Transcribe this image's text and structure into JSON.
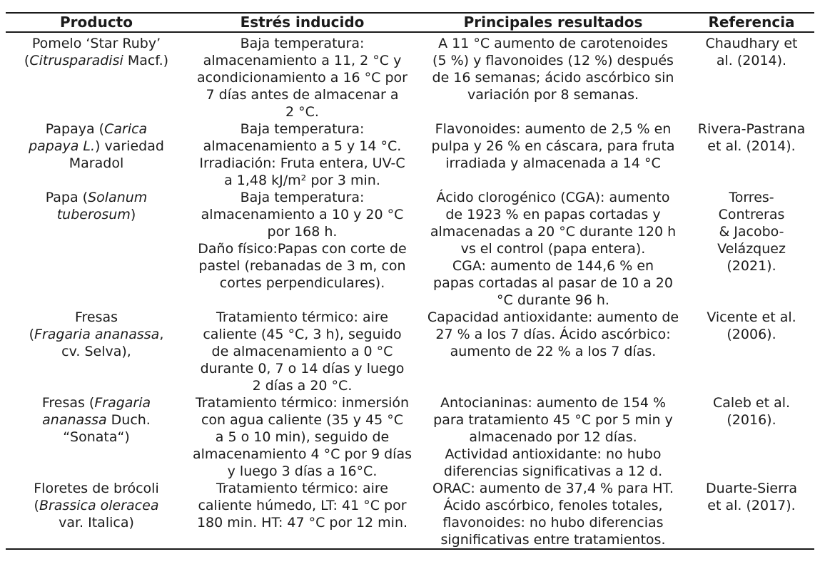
{
  "table": {
    "headers": [
      "Producto",
      "Estrés inducido",
      "Principales resultados",
      "Referencia"
    ],
    "column_keys": [
      "producto",
      "estres",
      "resultados",
      "referencia"
    ],
    "text_color": "#1b1b1b",
    "rule_color": "#1b1b1b",
    "rows": [
      {
        "producto": {
          "lines": [
            [
              {
                "t": "Pomelo ‘Star Ruby’"
              }
            ],
            [
              {
                "t": "("
              },
              {
                "t": "Citrusparadisi",
                "i": 1
              },
              {
                "t": " Macf.)"
              }
            ]
          ]
        },
        "estres": {
          "lines": [
            "Baja temperatura:",
            "almacenamiento a 11, 2 °C y",
            "acondicionamiento a 16 °C por",
            "7 días antes de almacenar a",
            "2 °C."
          ]
        },
        "resultados": {
          "lines": [
            "A 11 °C aumento de carotenoides",
            "(5 %) y flavonoides (12 %) después",
            "de 16 semanas; ácido ascórbico sin",
            "variación por 8 semanas."
          ]
        },
        "referencia": {
          "lines": [
            "Chaudhary et",
            "al. (2014)."
          ]
        }
      },
      {
        "producto": {
          "lines": [
            [
              {
                "t": "Papaya ("
              },
              {
                "t": "Carica",
                "i": 1
              }
            ],
            [
              {
                "t": "papaya L.",
                "i": 1
              },
              {
                "t": ") variedad"
              }
            ],
            [
              {
                "t": "Maradol"
              }
            ]
          ]
        },
        "estres": {
          "lines": [
            "Baja temperatura:",
            "almacenamiento a 5 y 14 °C.",
            "Irradiación: Fruta entera, UV-C",
            "a 1,48 kJ/m² por 3 min."
          ]
        },
        "resultados": {
          "lines": [
            "Flavonoides: aumento de 2,5 % en",
            "pulpa y 26 % en cáscara, para fruta",
            "irradiada y almacenada a 14 °C"
          ]
        },
        "referencia": {
          "lines": [
            "Rivera-Pastrana",
            "et al. (2014)."
          ]
        }
      },
      {
        "producto": {
          "lines": [
            [
              {
                "t": "Papa ("
              },
              {
                "t": "Solanum",
                "i": 1
              }
            ],
            [
              {
                "t": "tuberosum",
                "i": 1
              },
              {
                "t": ")"
              }
            ]
          ]
        },
        "estres": {
          "lines": [
            "Baja temperatura:",
            "almacenamiento a 10 y 20 °C",
            "por 168 h.",
            "Daño físico:Papas con corte de",
            "pastel (rebanadas de 3 m, con",
            "cortes perpendiculares)."
          ]
        },
        "resultados": {
          "lines": [
            "Ácido clorogénico (CGA): aumento",
            "de 1923 % en papas cortadas y",
            "almacenadas a 20 °C durante 120 h",
            "vs el control (papa entera).",
            "CGA: aumento de 144,6 % en",
            "papas cortadas al pasar de 10 a 20",
            "°C durante 96 h."
          ]
        },
        "referencia": {
          "lines": [
            "Torres-",
            "Contreras",
            "& Jacobo-",
            "Velázquez",
            "(2021)."
          ]
        }
      },
      {
        "producto": {
          "lines": [
            [
              {
                "t": "Fresas"
              }
            ],
            [
              {
                "t": "("
              },
              {
                "t": "Fragaria ananassa",
                "i": 1
              },
              {
                "t": ","
              }
            ],
            [
              {
                "t": "cv. Selva),"
              }
            ]
          ]
        },
        "estres": {
          "lines": [
            "Tratamiento térmico: aire",
            "caliente (45 °C, 3 h), seguido",
            "de almacenamiento a 0 °C",
            "durante 0, 7 o 14 días y luego",
            "2 días a 20 °C."
          ]
        },
        "resultados": {
          "lines": [
            "Capacidad antioxidante: aumento de",
            "27 % a los 7 días. Ácido ascórbico:",
            "aumento de 22 % a los 7 días."
          ]
        },
        "referencia": {
          "lines": [
            "Vicente et al.",
            "(2006)."
          ]
        }
      },
      {
        "producto": {
          "lines": [
            [
              {
                "t": "Fresas ("
              },
              {
                "t": "Fragaria",
                "i": 1
              }
            ],
            [
              {
                "t": "ananassa",
                "i": 1
              },
              {
                "t": " Duch."
              }
            ],
            [
              {
                "t": "“Sonata“)"
              }
            ]
          ]
        },
        "estres": {
          "lines": [
            "Tratamiento térmico: inmersión",
            "con agua caliente (35 y 45 °C",
            "a 5 o 10 min), seguido de",
            "almacenamiento 4 °C por 9 días",
            "y luego 3 días a 16°C."
          ]
        },
        "resultados": {
          "lines": [
            "Antocianinas: aumento de 154 %",
            "para tratamiento 45 °C por 5 min y",
            "almacenado por 12 días.",
            "Actividad antioxidante: no hubo",
            "diferencias significativas a 12 d."
          ]
        },
        "referencia": {
          "lines": [
            "Caleb et al.",
            "(2016)."
          ]
        }
      },
      {
        "producto": {
          "lines": [
            [
              {
                "t": "Floretes de brócoli"
              }
            ],
            [
              {
                "t": "("
              },
              {
                "t": "Brassica oleracea",
                "i": 1
              }
            ],
            [
              {
                "t": "var. Italica)"
              }
            ]
          ]
        },
        "estres": {
          "lines": [
            "Tratamiento térmico: aire",
            "caliente húmedo, LT: 41 °C por",
            "180 min. HT: 47 °C por 12 min."
          ]
        },
        "resultados": {
          "lines": [
            "ORAC: aumento de 37,4 % para HT.",
            "Ácido ascórbico, fenoles totales,",
            "flavonoides: no hubo diferencias",
            "significativas entre tratamientos."
          ]
        },
        "referencia": {
          "lines": [
            "Duarte-Sierra",
            "et al. (2017)."
          ]
        }
      }
    ]
  }
}
